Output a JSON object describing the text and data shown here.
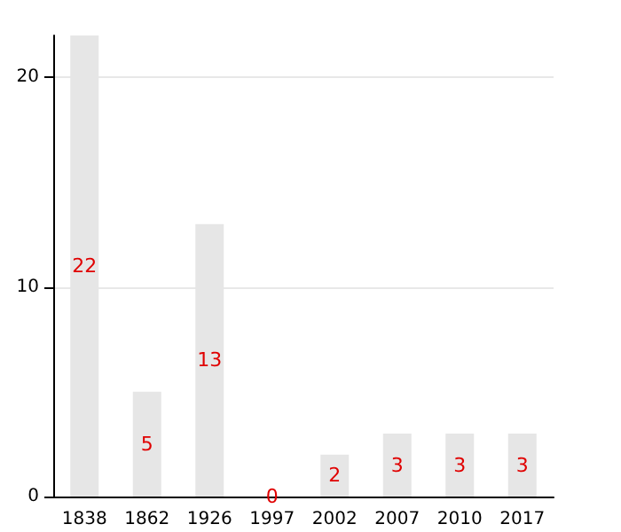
{
  "chart_data": {
    "type": "bar",
    "categories": [
      "1838",
      "1862",
      "1926",
      "1997",
      "2002",
      "2007",
      "2010",
      "2017"
    ],
    "values": [
      22,
      5,
      13,
      0,
      2,
      3,
      3,
      3
    ],
    "color": "#e6e6e6",
    "ylim": [
      0,
      22
    ],
    "yticks": [
      0,
      10,
      20
    ],
    "grid": "y",
    "data_labels": true
  }
}
